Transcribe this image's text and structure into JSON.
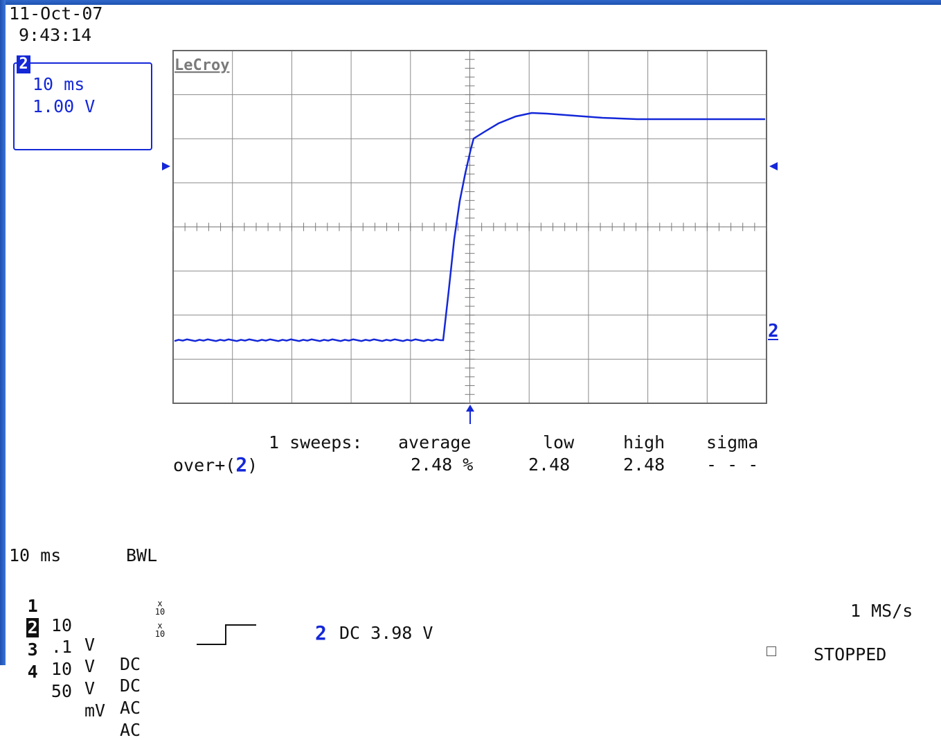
{
  "header": {
    "date": "11-Oct-07",
    "time": "9:43:14"
  },
  "channel_box": {
    "channel": "2",
    "time_per_div": "10 ms",
    "volts_per_div": "1.00 V"
  },
  "brand": "LeCroy",
  "trace": {
    "channel_marker": "2",
    "color": "#1428d8"
  },
  "measurement": {
    "sweeps_label": "1 sweeps:",
    "columns": {
      "average": "average",
      "low": "low",
      "high": "high",
      "sigma": "sigma"
    },
    "parameter": "over+(",
    "parameter_channel": "2",
    "parameter_close": ")",
    "values": {
      "average": "2.48 %",
      "low": "2.48",
      "high": "2.48",
      "sigma": "- - -"
    }
  },
  "timebase": {
    "time_per_div": "10 ms",
    "bwl": "BWL"
  },
  "channels": [
    {
      "num": "1",
      "scale": "10",
      "unit": "V",
      "coupling": "DC",
      "x10": false
    },
    {
      "num": "2",
      "scale": ".1",
      "unit": "V",
      "coupling": "DC",
      "x10": true
    },
    {
      "num": "3",
      "scale": "10",
      "unit": "V",
      "coupling": "AC",
      "x10": true
    },
    {
      "num": "4",
      "scale": "50",
      "unit": "mV",
      "coupling": "AC",
      "x10": false
    }
  ],
  "x10_label": "x\n10",
  "trigger": {
    "channel": "2",
    "text": "DC 3.98 V"
  },
  "acquisition": {
    "sample_rate": "1 MS/s",
    "status": "STOPPED"
  }
}
